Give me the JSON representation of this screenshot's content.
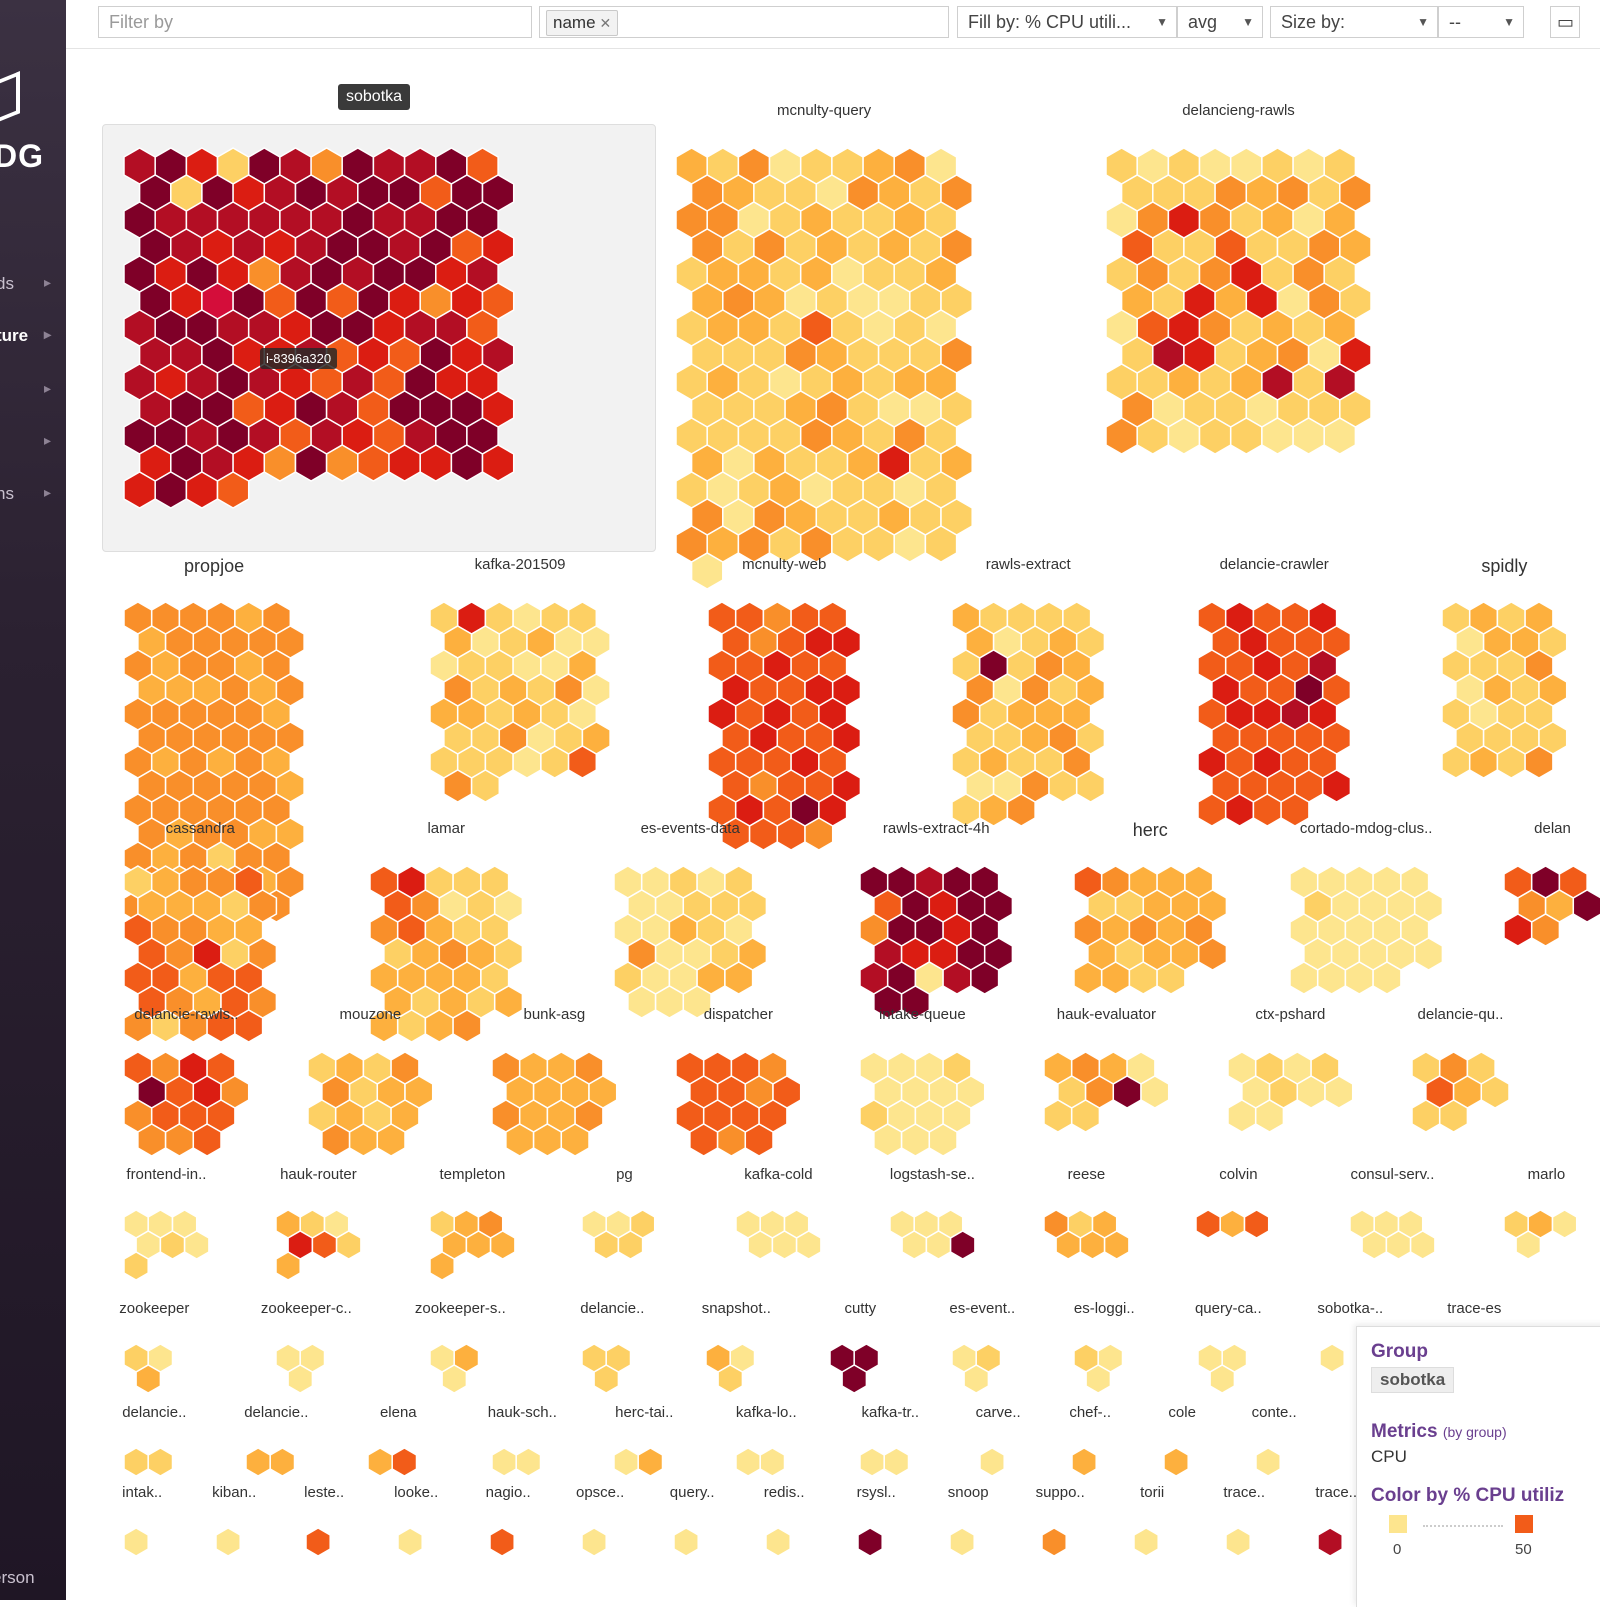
{
  "sidebar": {
    "logo_text": "DG",
    "items": [
      {
        "label": "ds",
        "active": false
      },
      {
        "label": "ture",
        "active": true
      },
      {
        "label": "",
        "active": false
      },
      {
        "label": "",
        "active": false
      },
      {
        "label": "ns",
        "active": false
      }
    ],
    "user": "erson"
  },
  "toolbar": {
    "filter_placeholder": "Filter by",
    "group_tag": "name",
    "fill_by": "Fill by: % CPU utili...",
    "fill_agg": "avg",
    "size_by": "Size by:",
    "size_agg": "--"
  },
  "colors": {
    "c1": "#fde58e",
    "c2": "#fdd064",
    "c3": "#fdb03e",
    "c4": "#f98f2a",
    "c5": "#f25c19",
    "c6": "#db1d12",
    "c7": "#b30e24",
    "c8": "#7f0028",
    "selected": "#d40d3a"
  },
  "selected_group_tooltip": "sobotka",
  "hovered_host": "i-8396a320",
  "groups": [
    {
      "name": "sobotka",
      "big": false,
      "highlight": true,
      "cells": "7862874877858286787885888777777877888767678878568686478788678678585864657887768867757786675658677678765758667885687588868878757657886876484566866865",
      "cols": 12,
      "r": 18
    },
    {
      "name": "mcnulty-query",
      "big": false,
      "cells": "3241223414322143244412322324242323242332312233431211222332521212224322242321232332223421122222432423132236232123122124143223224342422121",
      "cols": 9,
      "r": 18
    },
    {
      "name": "delancieng-rawls",
      "big": false,
      "cells": "2121121222243424146423135225224324246242326361421564232327623416223237274122122242122111",
      "cols": 8,
      "r": 18
    },
    {
      "name": "propjoe",
      "big": true,
      "cells": "444434344444434434333434444443444444434343444443444444434433434244434434444444444",
      "cols": 6,
      "r": 16
    },
    {
      "name": "kafka-201509",
      "big": false,
      "cells": "26212231231112211342324133232122412322212542",
      "cols": 6,
      "r": 16
    },
    {
      "name": "mcnulty-web",
      "big": false,
      "cells": "5545554566556556556665656565565556554556565865554",
      "cols": 5,
      "r": 16
    },
    {
      "name": "rawls-extract",
      "big": false,
      "cells": "3222231232282434142342333223422322411422234",
      "cols": 5,
      "r": 16
    },
    {
      "name": "delancie-crawler",
      "big": false,
      "cells": "56556565555565765585566765555565655555565655",
      "cols": 5,
      "r": 16
    },
    {
      "name": "spidly",
      "big": true,
      "cells": "2323133222241323212222222324",
      "cols": 4,
      "r": 16
    },
    {
      "name": "cassandra",
      "big": false,
      "cells": "23445333245443354624553555435442455",
      "cols": 5,
      "r": 16
    },
    {
      "name": "lamar",
      "big": false,
      "cells": "5622254121453222343233332323233234",
      "cols": 5,
      "r": 16
    },
    {
      "name": "es-events-data",
      "big": false,
      "cells": "1121211222113214112321133111",
      "cols": 5,
      "r": 16
    },
    {
      "name": "rawls-extract-4h",
      "big": false,
      "cells": "887885868848868766887817888",
      "cols": 5,
      "r": 16
    },
    {
      "name": "herc",
      "big": true,
      "cells": "543332233343434323343322",
      "cols": 5,
      "r": 16
    },
    {
      "name": "cortado-mdog-clus..",
      "big": false,
      "cells": "111112111111111111111111",
      "cols": 5,
      "r": 16
    },
    {
      "name": "delan",
      "big": false,
      "cells": "58543864",
      "cols": 3,
      "r": 16
    },
    {
      "name": "delancie-rawls..",
      "big": false,
      "cells": "546585644555445",
      "cols": 4,
      "r": 16
    },
    {
      "name": "mouzone",
      "big": false,
      "cells": "232442332323433",
      "cols": 4,
      "r": 16
    },
    {
      "name": "bunk-asg",
      "big": false,
      "cells": "433433334334333",
      "cols": 4,
      "r": 16
    },
    {
      "name": "dispatcher",
      "big": false,
      "cells": "555455455555545",
      "cols": 4,
      "r": 16
    },
    {
      "name": "intake-queue",
      "big": false,
      "cells": "111211112111111",
      "cols": 4,
      "r": 16
    },
    {
      "name": "hauk-evaluator",
      "big": false,
      "cells": "3431248122",
      "cols": 4,
      "r": 16
    },
    {
      "name": "ctx-pshard",
      "big": false,
      "cells": "1212121111",
      "cols": 4,
      "r": 16
    },
    {
      "name": "delancie-qu..",
      "big": false,
      "cells": "24253222",
      "cols": 3,
      "r": 16
    },
    {
      "name": "frontend-in..",
      "big": false,
      "cells": "1111212",
      "cols": 3,
      "r": 14
    },
    {
      "name": "hauk-router",
      "big": false,
      "cells": "3216523",
      "cols": 3,
      "r": 14
    },
    {
      "name": "templeton",
      "big": false,
      "cells": "2343333",
      "cols": 3,
      "r": 14
    },
    {
      "name": "pg",
      "big": false,
      "cells": "11222",
      "cols": 3,
      "r": 14
    },
    {
      "name": "kafka-cold",
      "big": false,
      "cells": "111111",
      "cols": 3,
      "r": 14
    },
    {
      "name": "logstash-se..",
      "big": false,
      "cells": "111118",
      "cols": 3,
      "r": 14
    },
    {
      "name": "reese",
      "big": false,
      "cells": "423333",
      "cols": 3,
      "r": 14
    },
    {
      "name": "colvin",
      "big": false,
      "cells": "535",
      "cols": 3,
      "r": 14
    },
    {
      "name": "consul-serv..",
      "big": false,
      "cells": "111111",
      "cols": 3,
      "r": 14
    },
    {
      "name": "marlo",
      "big": false,
      "cells": "2311",
      "cols": 3,
      "r": 14
    },
    {
      "name": "zookeeper",
      "big": false,
      "cells": "213",
      "cols": 2,
      "r": 14
    },
    {
      "name": "zookeeper-c..",
      "big": false,
      "cells": "111",
      "cols": 2,
      "r": 14
    },
    {
      "name": "zookeeper-s..",
      "big": false,
      "cells": "131",
      "cols": 2,
      "r": 14
    },
    {
      "name": "delancie..",
      "big": false,
      "cells": "222",
      "cols": 2,
      "r": 14
    },
    {
      "name": "snapshot..",
      "big": false,
      "cells": "312",
      "cols": 2,
      "r": 14
    },
    {
      "name": "cutty",
      "big": false,
      "cells": "888",
      "cols": 2,
      "r": 14
    },
    {
      "name": "es-event..",
      "big": false,
      "cells": "121",
      "cols": 2,
      "r": 14
    },
    {
      "name": "es-loggi..",
      "big": false,
      "cells": "211",
      "cols": 2,
      "r": 14
    },
    {
      "name": "query-ca..",
      "big": false,
      "cells": "111",
      "cols": 2,
      "r": 14
    },
    {
      "name": "sobotka-..",
      "big": false,
      "cells": "1",
      "cols": 2,
      "r": 14
    },
    {
      "name": "trace-es",
      "big": false,
      "cells": "",
      "cols": 2,
      "r": 14
    },
    {
      "name": "delancie..",
      "big": false,
      "cells": "22",
      "cols": 2,
      "r": 14
    },
    {
      "name": "delancie..",
      "big": false,
      "cells": "33",
      "cols": 2,
      "r": 14
    },
    {
      "name": "elena",
      "big": false,
      "cells": "35",
      "cols": 2,
      "r": 14
    },
    {
      "name": "hauk-sch..",
      "big": false,
      "cells": "11",
      "cols": 2,
      "r": 14
    },
    {
      "name": "herc-tai..",
      "big": false,
      "cells": "13",
      "cols": 2,
      "r": 14
    },
    {
      "name": "kafka-lo..",
      "big": false,
      "cells": "11",
      "cols": 2,
      "r": 14
    },
    {
      "name": "kafka-tr..",
      "big": false,
      "cells": "11",
      "cols": 2,
      "r": 14
    },
    {
      "name": "carve..",
      "big": false,
      "cells": "1",
      "cols": 1,
      "r": 14
    },
    {
      "name": "chef-..",
      "big": false,
      "cells": "3",
      "cols": 1,
      "r": 14
    },
    {
      "name": "cole",
      "big": false,
      "cells": "3",
      "cols": 1,
      "r": 14
    },
    {
      "name": "conte..",
      "big": false,
      "cells": "1",
      "cols": 1,
      "r": 14
    },
    {
      "name": "intak..",
      "big": false,
      "cells": "1",
      "cols": 1,
      "r": 14
    },
    {
      "name": "kiban..",
      "big": false,
      "cells": "1",
      "cols": 1,
      "r": 14
    },
    {
      "name": "leste..",
      "big": false,
      "cells": "5",
      "cols": 1,
      "r": 14
    },
    {
      "name": "looke..",
      "big": false,
      "cells": "1",
      "cols": 1,
      "r": 14
    },
    {
      "name": "nagio..",
      "big": false,
      "cells": "5",
      "cols": 1,
      "r": 14
    },
    {
      "name": "opsce..",
      "big": false,
      "cells": "1",
      "cols": 1,
      "r": 14
    },
    {
      "name": "query..",
      "big": false,
      "cells": "1",
      "cols": 1,
      "r": 14
    },
    {
      "name": "redis..",
      "big": false,
      "cells": "1",
      "cols": 1,
      "r": 14
    },
    {
      "name": "rsysl..",
      "big": false,
      "cells": "8",
      "cols": 1,
      "r": 14
    },
    {
      "name": "snoop",
      "big": false,
      "cells": "1",
      "cols": 1,
      "r": 14
    },
    {
      "name": "suppo..",
      "big": false,
      "cells": "4",
      "cols": 1,
      "r": 14
    },
    {
      "name": "torii",
      "big": false,
      "cells": "1",
      "cols": 1,
      "r": 14
    },
    {
      "name": "trace..",
      "big": false,
      "cells": "1",
      "cols": 1,
      "r": 14
    },
    {
      "name": "trace..",
      "big": false,
      "cells": "7",
      "cols": 1,
      "r": 14
    }
  ],
  "info_panel": {
    "group_heading": "Group",
    "group_value": "sobotka",
    "metrics_heading": "Metrics",
    "metrics_sub": "(by group)",
    "metrics_value": "CPU",
    "color_heading": "Color by % CPU utiliz",
    "legend_min": "0",
    "legend_mid": "50"
  }
}
